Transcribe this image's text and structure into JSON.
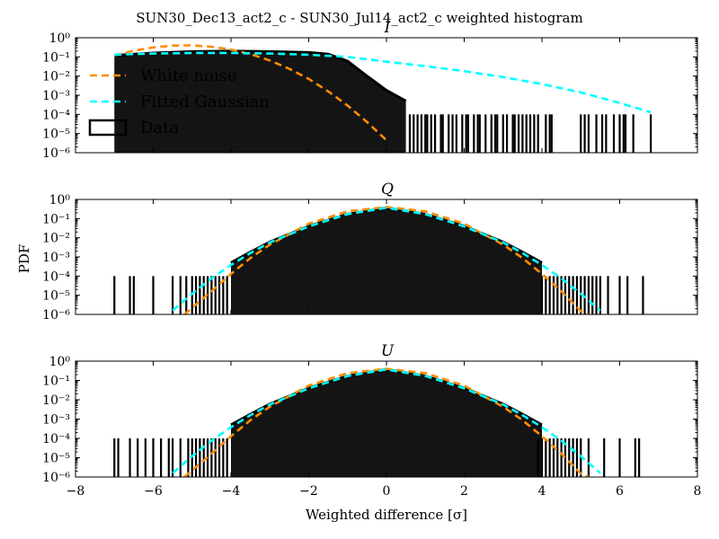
{
  "figure": {
    "suptitle": "SUN30_Dec13_act2_c - SUN30_Jul14_act2_c weighted histogram",
    "ylabel": "PDF",
    "xlabel": "Weighted difference [σ]",
    "colors": {
      "data": "#000000",
      "white_noise": "#ff8c00",
      "fitted_gaussian": "#00ffff"
    }
  },
  "chart_data": [
    {
      "type": "line",
      "title": "I",
      "xlim": [
        -8,
        8
      ],
      "ylim_exponent": [
        -6,
        0
      ],
      "yscale": "log",
      "x_ticks": [
        "−8",
        "−6",
        "−4",
        "−2",
        "0",
        "2",
        "4",
        "6",
        "8"
      ],
      "y_ticks": [
        "10⁰",
        "10⁻¹",
        "10⁻²",
        "10⁻³",
        "10⁻⁴",
        "10⁻⁵",
        "10⁻⁶"
      ],
      "legend": {
        "placement": "upper-left",
        "entries": [
          {
            "label": "White noise",
            "style": "dashed",
            "color": "#ff8c00"
          },
          {
            "label": "Fitted Gaussian",
            "style": "dashed",
            "color": "#00ffff"
          },
          {
            "label": "Data",
            "style": "box",
            "color": "#000000"
          }
        ]
      },
      "series": [
        {
          "name": "White noise",
          "style": "dashed",
          "color": "#ff8c00",
          "x": [
            -7.0,
            -6.5,
            -6.0,
            -5.5,
            -5.0,
            -4.5,
            -4.0,
            -3.5,
            -3.0,
            -2.5,
            -2.0,
            -1.5,
            -1.0,
            -0.5,
            0.0
          ],
          "y": [
            0.12,
            0.21,
            0.31,
            0.39,
            0.4,
            0.34,
            0.24,
            0.14,
            0.065,
            0.024,
            0.0071,
            0.0016,
            0.00029,
            4e-05,
            4.5e-06
          ]
        },
        {
          "name": "Fitted Gaussian",
          "style": "dashed",
          "color": "#00ffff",
          "x": [
            -7.0,
            -6.0,
            -5.0,
            -4.0,
            -3.0,
            -2.0,
            -1.0,
            0.0,
            1.0,
            2.0,
            3.0,
            4.0,
            5.0,
            5.8,
            6.8
          ],
          "y": [
            0.13,
            0.15,
            0.16,
            0.16,
            0.15,
            0.13,
            0.1,
            0.056,
            0.033,
            0.018,
            0.0089,
            0.0038,
            0.0014,
            0.00051,
            0.00013
          ]
        },
        {
          "name": "Data",
          "style": "step",
          "color": "#000000",
          "x": [
            -7.0,
            -6.0,
            -5.0,
            -4.0,
            -3.0,
            -2.0,
            -1.5,
            -1.0,
            -0.5,
            0.0,
            0.5
          ],
          "y": [
            0.12,
            0.16,
            0.19,
            0.2,
            0.19,
            0.17,
            0.14,
            0.06,
            0.01,
            0.0018,
            0.0005
          ],
          "sparse_x": [
            0.6,
            0.7,
            0.8,
            0.9,
            1.0,
            1.05,
            1.15,
            1.25,
            1.4,
            1.45,
            1.6,
            1.7,
            1.8,
            1.95,
            2.05,
            2.1,
            2.25,
            2.35,
            2.4,
            2.55,
            2.7,
            2.8,
            2.85,
            3.0,
            3.1,
            3.25,
            3.3,
            3.4,
            3.5,
            3.6,
            3.7,
            3.8,
            3.9,
            4.1,
            4.2,
            4.25,
            5.0,
            5.1,
            5.2,
            5.4,
            5.55,
            5.65,
            5.85,
            6.0,
            6.1,
            6.15,
            6.35,
            6.8
          ],
          "sparse_y": 0.0001
        }
      ]
    },
    {
      "type": "line",
      "title": "Q",
      "xlim": [
        -8,
        8
      ],
      "ylim_exponent": [
        -6,
        0
      ],
      "yscale": "log",
      "x_ticks": [
        "−8",
        "−6",
        "−4",
        "−2",
        "0",
        "2",
        "4",
        "6",
        "8"
      ],
      "y_ticks": [
        "10⁰",
        "10⁻¹",
        "10⁻²",
        "10⁻³",
        "10⁻⁴",
        "10⁻⁵",
        "10⁻⁶"
      ],
      "series": [
        {
          "name": "White noise",
          "style": "dashed",
          "color": "#ff8c00",
          "x": [
            -5.2,
            -4.5,
            -4.0,
            -3.5,
            -3.0,
            -2.0,
            -1.0,
            0.0,
            1.0,
            2.0,
            3.0,
            3.5,
            4.0,
            4.5,
            5.0,
            5.2
          ],
          "y": [
            1e-06,
            1.6e-05,
            0.00013,
            0.00087,
            0.0044,
            0.054,
            0.24,
            0.4,
            0.24,
            0.054,
            0.0044,
            0.00087,
            0.00013,
            1.6e-05,
            1.5e-06,
            1e-06
          ]
        },
        {
          "name": "Fitted Gaussian",
          "style": "dashed",
          "color": "#00ffff",
          "x": [
            -5.5,
            -5.0,
            -4.5,
            -4.0,
            -3.5,
            -3.0,
            -2.0,
            -1.0,
            0.0,
            1.0,
            2.0,
            3.0,
            3.5,
            4.0,
            4.5,
            5.0,
            5.5
          ],
          "y": [
            1.6e-06,
            1.2e-05,
            7.6e-05,
            0.00038,
            0.0016,
            0.0057,
            0.039,
            0.17,
            0.37,
            0.17,
            0.039,
            0.0057,
            0.0016,
            0.00038,
            7.6e-05,
            1.2e-05,
            1.6e-06
          ]
        },
        {
          "name": "Data",
          "style": "step",
          "color": "#000000",
          "x": [
            -4.0,
            -3.5,
            -3.0,
            -2.0,
            -1.0,
            0.0,
            1.0,
            2.0,
            3.0,
            3.5,
            4.0
          ],
          "y": [
            0.0005,
            0.0018,
            0.006,
            0.04,
            0.17,
            0.37,
            0.17,
            0.04,
            0.006,
            0.0018,
            0.0005
          ],
          "sparse_x": [
            -7.0,
            -6.6,
            -6.5,
            -6.0,
            -5.5,
            -5.3,
            -5.15,
            -5.0,
            -4.9,
            -4.8,
            -4.7,
            -4.6,
            -4.5,
            -4.4,
            -4.3,
            -4.2,
            -4.1,
            4.0,
            4.1,
            4.2,
            4.3,
            4.4,
            4.5,
            4.6,
            4.7,
            4.8,
            4.9,
            5.0,
            5.1,
            5.2,
            5.3,
            5.4,
            5.5,
            5.7,
            6.0,
            6.2,
            6.6
          ],
          "sparse_y": 0.0001
        }
      ]
    },
    {
      "type": "line",
      "title": "U",
      "xlim": [
        -8,
        8
      ],
      "ylim_exponent": [
        -6,
        0
      ],
      "yscale": "log",
      "x_ticks": [
        "−8",
        "−6",
        "−4",
        "−2",
        "0",
        "2",
        "4",
        "6",
        "8"
      ],
      "y_ticks": [
        "10⁰",
        "10⁻¹",
        "10⁻²",
        "10⁻³",
        "10⁻⁴",
        "10⁻⁵",
        "10⁻⁶"
      ],
      "series": [
        {
          "name": "White noise",
          "style": "dashed",
          "color": "#ff8c00",
          "x": [
            -5.2,
            -4.5,
            -4.0,
            -3.5,
            -3.0,
            -2.0,
            -1.0,
            0.0,
            1.0,
            2.0,
            3.0,
            3.5,
            4.0,
            4.5,
            5.0,
            5.2
          ],
          "y": [
            1e-06,
            1.6e-05,
            0.00013,
            0.00087,
            0.0044,
            0.054,
            0.24,
            0.4,
            0.24,
            0.054,
            0.0044,
            0.00087,
            0.00013,
            1.6e-05,
            1.5e-06,
            1e-06
          ]
        },
        {
          "name": "Fitted Gaussian",
          "style": "dashed",
          "color": "#00ffff",
          "x": [
            -5.5,
            -5.0,
            -4.5,
            -4.0,
            -3.5,
            -3.0,
            -2.0,
            -1.0,
            0.0,
            1.0,
            2.0,
            3.0,
            3.5,
            4.0,
            4.5,
            5.0,
            5.5
          ],
          "y": [
            1.6e-06,
            1.2e-05,
            7.6e-05,
            0.00038,
            0.0016,
            0.0057,
            0.039,
            0.17,
            0.37,
            0.17,
            0.039,
            0.0057,
            0.0016,
            0.00038,
            7.6e-05,
            1.2e-05,
            1.6e-06
          ]
        },
        {
          "name": "Data",
          "style": "step",
          "color": "#000000",
          "x": [
            -4.0,
            -3.5,
            -3.0,
            -2.0,
            -1.0,
            0.0,
            1.0,
            2.0,
            3.0,
            3.5,
            4.0
          ],
          "y": [
            0.0005,
            0.0018,
            0.006,
            0.04,
            0.17,
            0.37,
            0.17,
            0.04,
            0.006,
            0.0018,
            0.0005
          ],
          "sparse_x": [
            -7.0,
            -6.9,
            -6.6,
            -6.4,
            -6.2,
            -6.0,
            -5.8,
            -5.6,
            -5.5,
            -5.3,
            -5.1,
            -5.0,
            -4.9,
            -4.8,
            -4.7,
            -4.6,
            -4.5,
            -4.4,
            -4.3,
            -4.2,
            -4.1,
            3.9,
            4.0,
            4.1,
            4.2,
            4.3,
            4.4,
            4.5,
            4.6,
            4.7,
            4.8,
            4.9,
            5.0,
            5.2,
            5.6,
            6.0,
            6.4,
            6.5
          ],
          "sparse_y": 0.0001
        }
      ]
    }
  ]
}
